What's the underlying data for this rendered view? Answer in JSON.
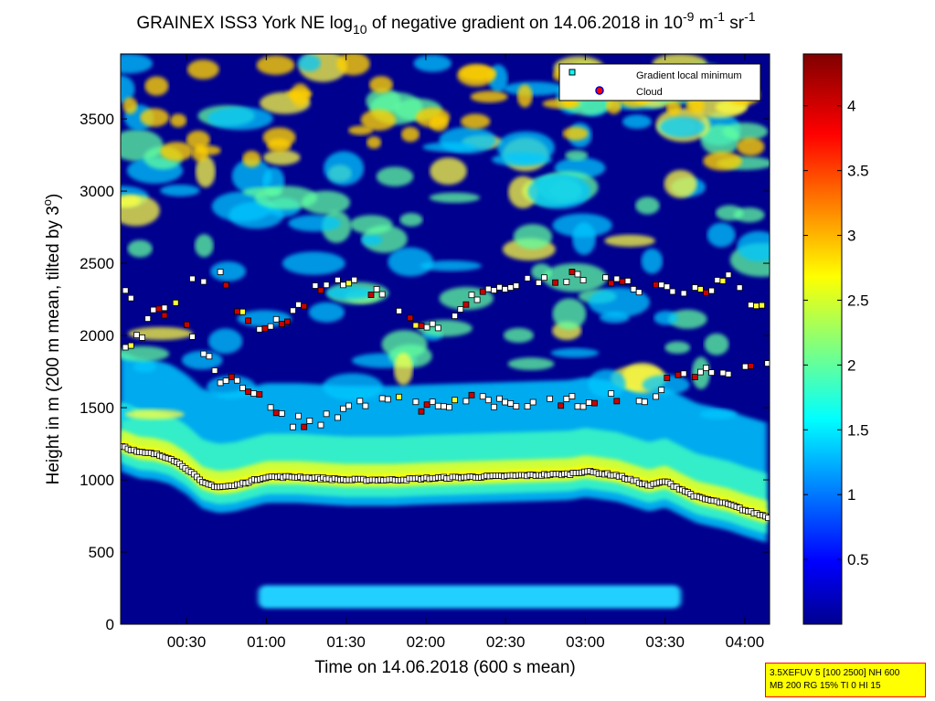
{
  "title": {
    "prefix": "GRAINEX ISS3 York NE log",
    "sub": "10",
    "middle": " of negative gradient on 14.06.2018 in 10",
    "exp1": "-9",
    "unit1": " m",
    "exp2": "-1",
    "unit2": " sr",
    "exp3": "-1"
  },
  "info_box": {
    "line1": "3.5XEFUV 5 [100 2500] NH 600",
    "line2": "MB 200 RG 15% TI 0 HI 15"
  },
  "chart_data": {
    "type": "heatmap",
    "xlabel": "Time on 14.06.2018 (600 s mean)",
    "ylabel_main": "Height in m (200 m mean, tilted by 3",
    "ylabel_sup": "o",
    "ylabel_end": ")",
    "x_range_hours": [
      0.087,
      4.155
    ],
    "y_range_m": [
      0,
      3950
    ],
    "x_ticks": [
      "00:30",
      "01:00",
      "01:30",
      "02:00",
      "02:30",
      "03:00",
      "03:30",
      "04:00"
    ],
    "x_tick_hours": [
      0.5,
      1.0,
      1.5,
      2.0,
      2.5,
      3.0,
      3.5,
      4.0
    ],
    "y_ticks": [
      "0",
      "500",
      "1000",
      "1500",
      "2000",
      "2500",
      "3000",
      "3500"
    ],
    "y_tick_values": [
      0,
      500,
      1000,
      1500,
      2000,
      2500,
      3000,
      3500
    ],
    "colorbar": {
      "range": [
        0,
        4.4
      ],
      "ticks": [
        "0.5",
        "1",
        "1.5",
        "2",
        "2.5",
        "3",
        "3.5",
        "4"
      ],
      "tick_values": [
        0.5,
        1,
        1.5,
        2,
        2.5,
        3,
        3.5,
        4
      ],
      "colormap": "jet"
    },
    "legend": {
      "placement": "top-right",
      "entries": [
        {
          "label": "Gradient local minimum",
          "marker": "square",
          "color": "#00ffff"
        },
        {
          "label": "Cloud",
          "marker": "circle",
          "color": "#ff0000"
        }
      ]
    },
    "layers": {
      "boundary_layer_top": {
        "hours": [
          0.087,
          0.2,
          0.3,
          0.4,
          0.5,
          0.6,
          0.7,
          0.8,
          1.0,
          1.2,
          1.5,
          1.8,
          2.0,
          2.3,
          2.6,
          2.9,
          3.0,
          3.2,
          3.4,
          3.5,
          3.7,
          3.9,
          4.0,
          4.155
        ],
        "height_m": [
          1240,
          1190,
          1180,
          1150,
          1080,
          980,
          950,
          960,
          1020,
          1020,
          1000,
          1000,
          1010,
          1020,
          1030,
          1040,
          1060,
          1030,
          960,
          990,
          880,
          830,
          790,
          740
        ]
      },
      "mid_cloud_minima": {
        "hours": [
          0.1,
          0.2,
          0.3,
          0.45,
          0.55,
          0.7,
          0.9,
          1.1,
          1.3,
          1.5,
          1.7,
          1.95,
          2.1,
          2.3,
          2.5,
          2.75,
          2.95,
          3.15,
          3.35,
          3.55,
          3.75,
          3.9,
          4.05
        ],
        "height_m": [
          1950,
          1990,
          2150,
          2200,
          1960,
          1720,
          1620,
          1420,
          1380,
          1480,
          1560,
          1520,
          1500,
          1560,
          1530,
          1530,
          1550,
          1560,
          1550,
          1700,
          1740,
          1760,
          1780
        ]
      },
      "upper_layer_minima": {
        "hours": [
          0.1,
          0.2,
          0.4,
          0.55,
          0.7,
          0.9,
          1.1,
          1.4,
          1.6,
          1.9,
          2.1,
          2.3,
          2.5,
          2.7,
          2.9,
          3.1,
          3.3,
          3.5,
          3.7,
          3.9,
          4.1
        ],
        "height_m": [
          2300,
          2250,
          2160,
          2400,
          2420,
          2060,
          2100,
          2400,
          2370,
          2090,
          2080,
          2290,
          2300,
          2380,
          2420,
          2430,
          2330,
          2320,
          2300,
          2390,
          2180
        ]
      }
    },
    "markers": {
      "minimum": {
        "fill": "#ffffff",
        "stroke": "#000000"
      },
      "cloud": {
        "fill": "#cc0000",
        "stroke": "#000000"
      }
    }
  }
}
